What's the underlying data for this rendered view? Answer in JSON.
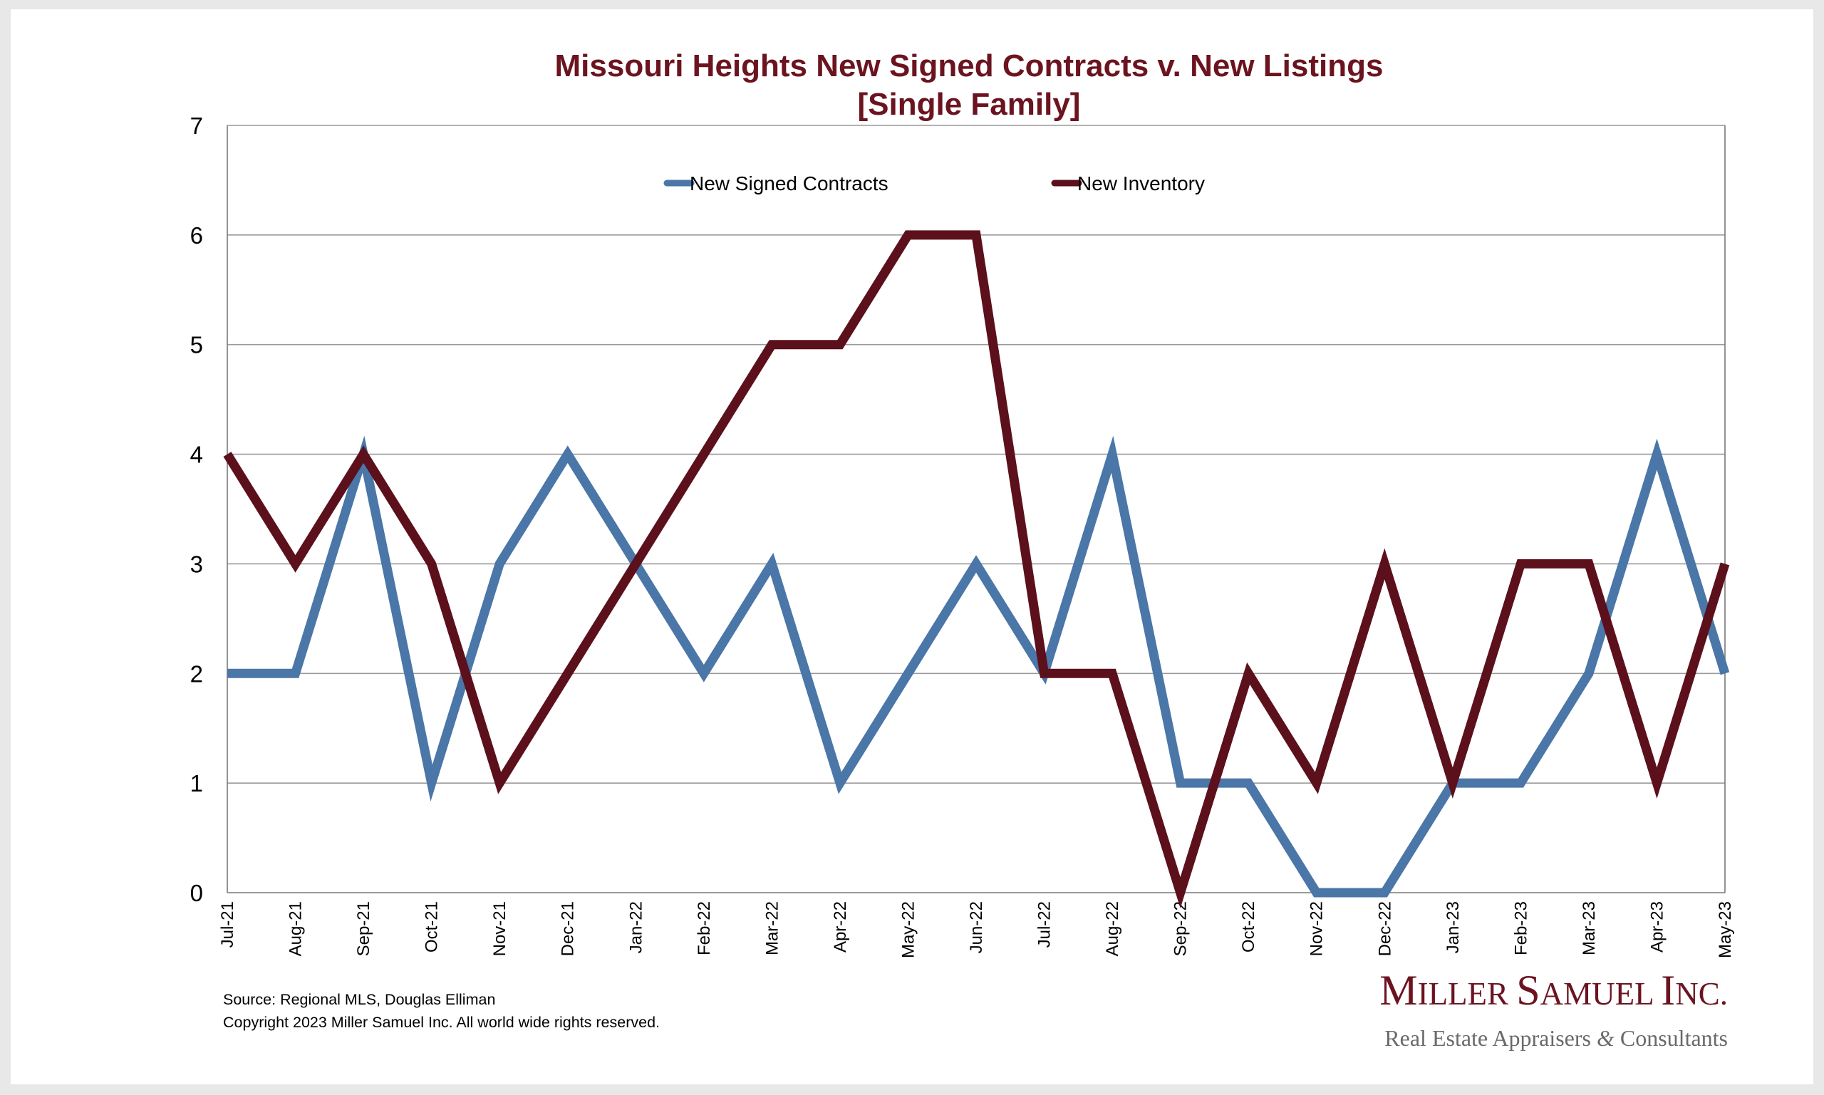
{
  "chart_data": {
    "type": "line",
    "title": "Missouri Heights New Signed Contracts v. New Listings",
    "subtitle": "[Single Family]",
    "xlabel": "",
    "ylabel": "",
    "ylim": [
      0,
      7
    ],
    "yticks": [
      "0",
      "1",
      "2",
      "3",
      "4",
      "5",
      "6",
      "7"
    ],
    "grid": true,
    "legend_position": "top-center",
    "categories": [
      "Jul-21",
      "Aug-21",
      "Sep-21",
      "Oct-21",
      "Nov-21",
      "Dec-21",
      "Jan-22",
      "Feb-22",
      "Mar-22",
      "Apr-22",
      "May-22",
      "Jun-22",
      "Jul-22",
      "Aug-22",
      "Sep-22",
      "Oct-22",
      "Nov-22",
      "Dec-22",
      "Jan-23",
      "Feb-23",
      "Mar-23",
      "Apr-23",
      "May-23"
    ],
    "series": [
      {
        "name": "New Signed Contracts",
        "color": "#4a76a8",
        "values": [
          2,
          2,
          4,
          1,
          3,
          4,
          3,
          2,
          3,
          1,
          2,
          3,
          2,
          4,
          1,
          1,
          0,
          0,
          1,
          1,
          2,
          4,
          2
        ]
      },
      {
        "name": "New Inventory",
        "color": "#5c101c",
        "values": [
          4,
          3,
          4,
          3,
          1,
          2,
          3,
          4,
          5,
          5,
          6,
          6,
          2,
          2,
          0,
          2,
          1,
          3,
          1,
          3,
          3,
          1,
          3
        ]
      }
    ]
  },
  "footer": {
    "source": "Source: Regional MLS, Douglas Elliman",
    "copyright": "Copyright 2023 Miller Samuel Inc.  All world wide rights reserved."
  },
  "brand": {
    "name": "Miller Samuel Inc.",
    "tagline": "Real Estate Appraisers & Consultants",
    "color": "#6b1420"
  }
}
